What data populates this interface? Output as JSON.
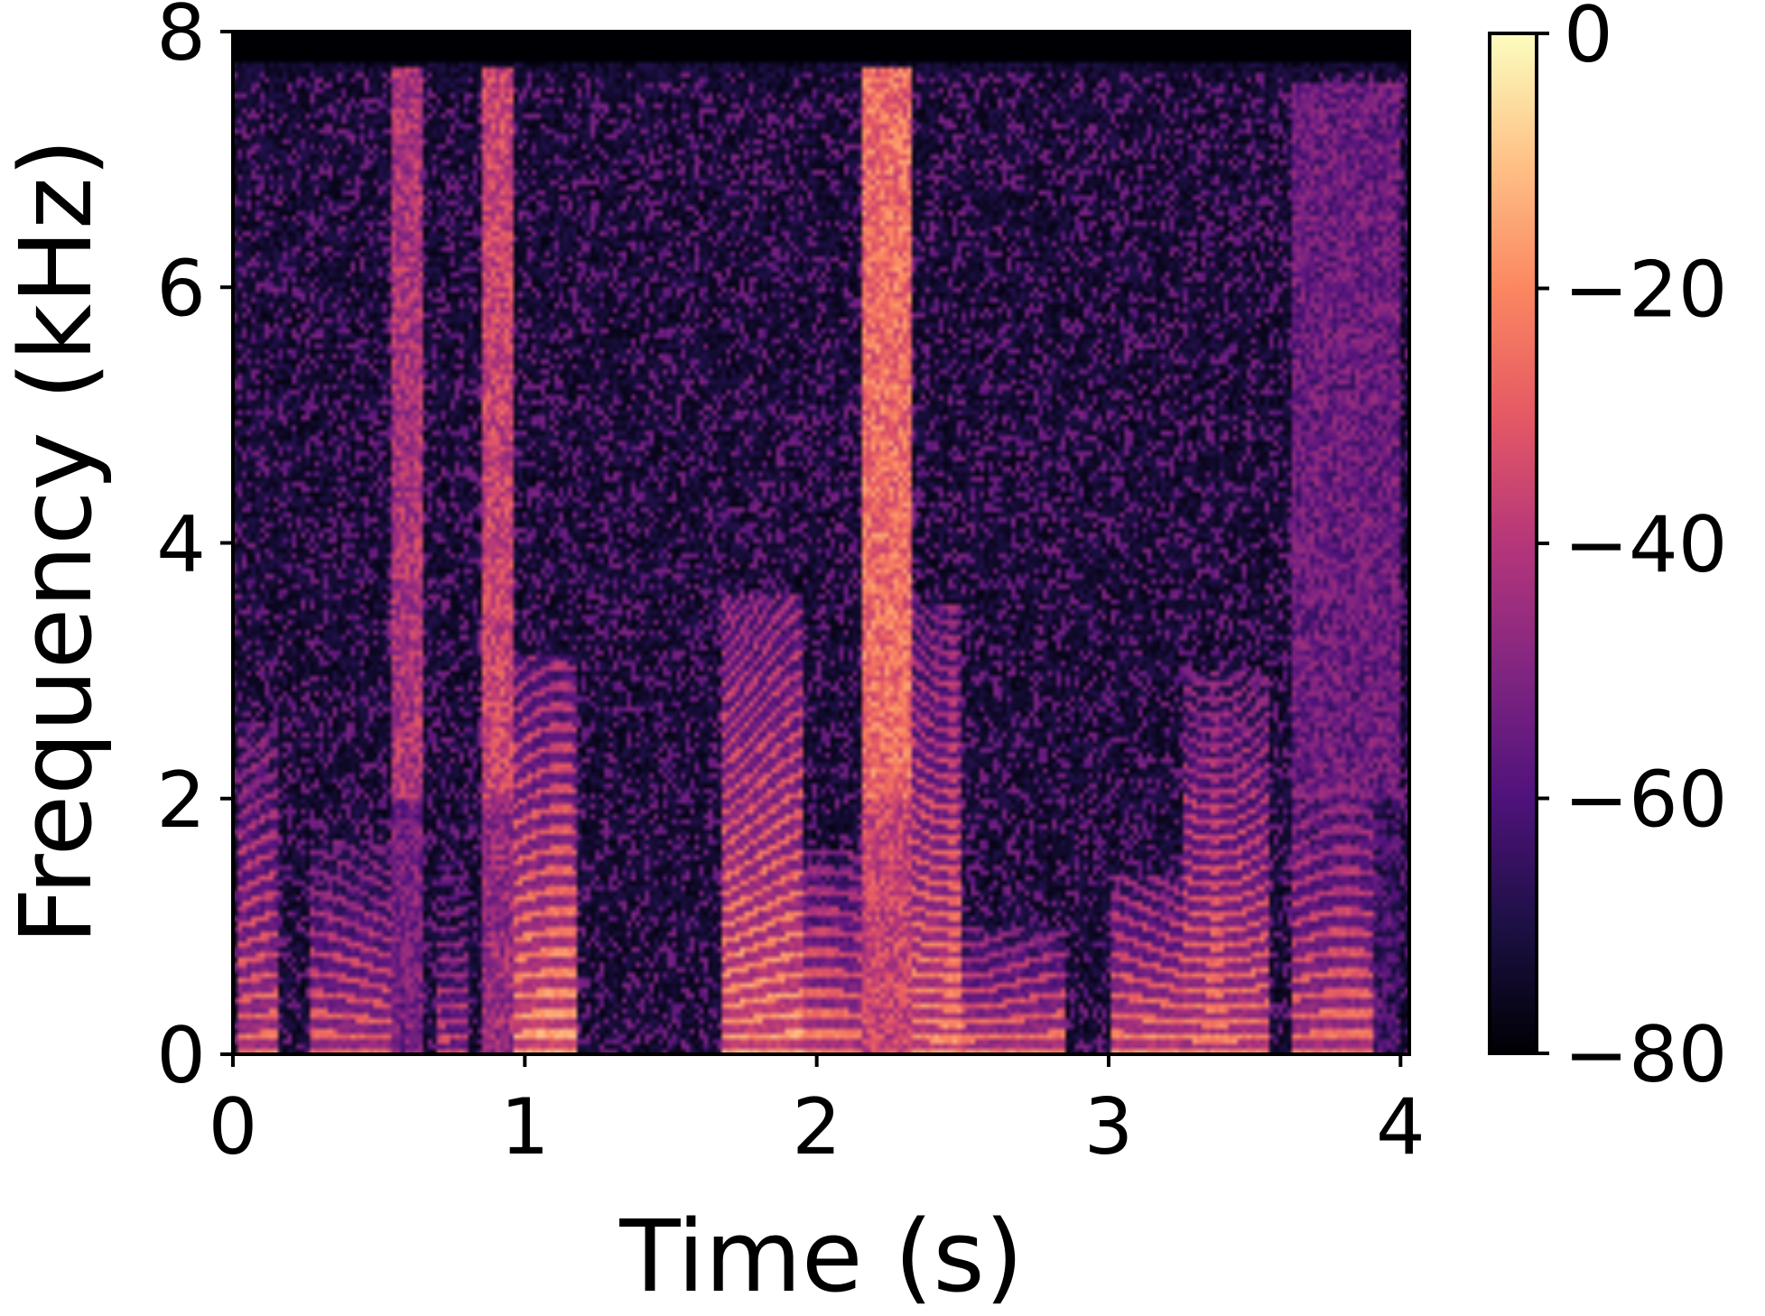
{
  "chart_data": {
    "type": "heatmap",
    "subtype": "spectrogram",
    "title": "",
    "xlabel": "Time (s)",
    "ylabel": "Frequency (kHz)",
    "xlim": [
      0,
      4.03
    ],
    "ylim": [
      0,
      8
    ],
    "x_ticks": [
      0,
      1,
      2,
      3,
      4
    ],
    "y_ticks": [
      0,
      2,
      4,
      6,
      8
    ],
    "grid": false,
    "colormap": "magma",
    "colorbar": {
      "label": "",
      "range": [
        -80,
        0
      ],
      "ticks": [
        0,
        -20,
        -40,
        -60,
        -80
      ],
      "tick_labels": [
        "0",
        "−20",
        "−40",
        "−60",
        "−80"
      ]
    },
    "description_of_values": "Magnitude in dB; speech with voiced harmonic stacks below ~2 kHz and broadband fricative energy up to ~7.7 kHz",
    "energy_segments": [
      {
        "t_start": 0.02,
        "t_end": 0.15,
        "f_max_khz": 2.6,
        "level_db": -30,
        "type": "voiced"
      },
      {
        "t_start": 0.27,
        "t_end": 0.55,
        "f_max_khz": 1.7,
        "level_db": -32,
        "type": "voiced"
      },
      {
        "t_start": 0.55,
        "t_end": 0.65,
        "f_max_khz": 7.7,
        "level_db": -42,
        "type": "fricative"
      },
      {
        "t_start": 0.7,
        "t_end": 0.8,
        "f_max_khz": 1.5,
        "level_db": -40,
        "type": "voiced"
      },
      {
        "t_start": 0.86,
        "t_end": 0.96,
        "f_max_khz": 7.7,
        "level_db": -36,
        "type": "fricative"
      },
      {
        "t_start": 0.96,
        "t_end": 1.18,
        "f_max_khz": 3.1,
        "level_db": -22,
        "type": "voiced"
      },
      {
        "t_start": 1.25,
        "t_end": 1.65,
        "f_max_khz": 0.3,
        "level_db": -70,
        "type": "silence"
      },
      {
        "t_start": 1.68,
        "t_end": 1.95,
        "f_max_khz": 3.6,
        "level_db": -22,
        "type": "voiced"
      },
      {
        "t_start": 1.95,
        "t_end": 2.15,
        "f_max_khz": 1.6,
        "level_db": -28,
        "type": "voiced"
      },
      {
        "t_start": 2.15,
        "t_end": 2.32,
        "f_max_khz": 7.7,
        "level_db": -26,
        "type": "fricative"
      },
      {
        "t_start": 2.33,
        "t_end": 2.5,
        "f_max_khz": 3.5,
        "level_db": -25,
        "type": "voiced"
      },
      {
        "t_start": 2.5,
        "t_end": 2.85,
        "f_max_khz": 1.0,
        "level_db": -28,
        "type": "voiced"
      },
      {
        "t_start": 3.0,
        "t_end": 3.25,
        "f_max_khz": 1.4,
        "level_db": -26,
        "type": "voiced"
      },
      {
        "t_start": 3.25,
        "t_end": 3.55,
        "f_max_khz": 3.0,
        "level_db": -28,
        "type": "voiced"
      },
      {
        "t_start": 3.62,
        "t_end": 3.9,
        "f_max_khz": 2.2,
        "level_db": -30,
        "type": "voiced"
      },
      {
        "t_start": 3.62,
        "t_end": 4.0,
        "f_max_khz": 7.6,
        "level_db": -55,
        "type": "fricative"
      }
    ]
  },
  "colors": {
    "background": "#ffffff",
    "axes": "#000000",
    "colormap_stops": [
      "#000004",
      "#1c1044",
      "#4f127b",
      "#812581",
      "#b5367a",
      "#e55964",
      "#fb8761",
      "#fec287",
      "#fcfdbf"
    ]
  }
}
